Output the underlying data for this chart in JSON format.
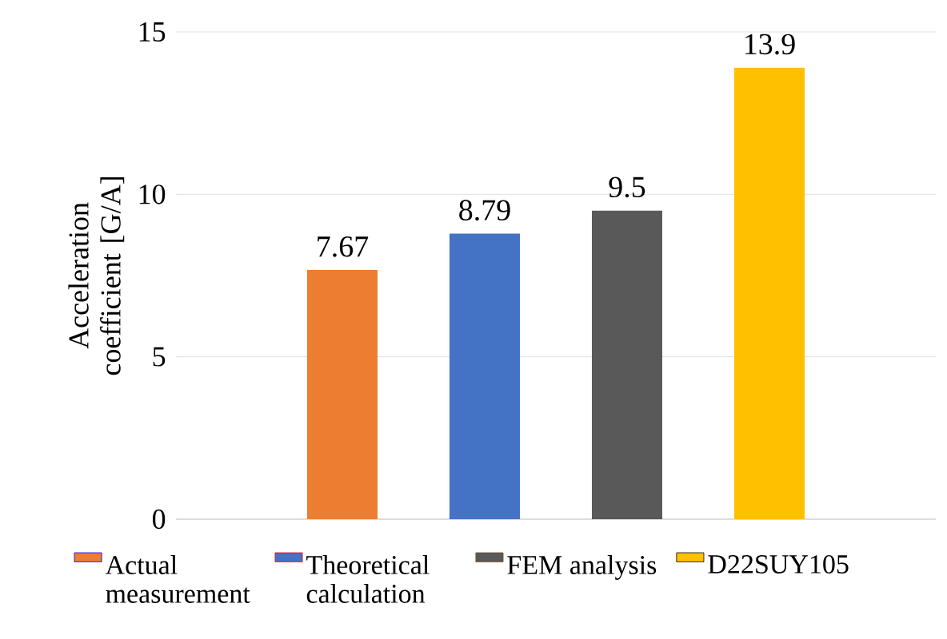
{
  "chart_data": {
    "type": "bar",
    "ylabel": "Acceleration coefficient [G/A]",
    "categories": [
      null
    ],
    "series": [
      {
        "name": "Actual measurement",
        "color": "#ed7d31",
        "values": [
          7.67
        ]
      },
      {
        "name": "Theoretical calculation",
        "color": "#4472c4",
        "values": [
          8.79
        ]
      },
      {
        "name": "FEM analysis",
        "color": "#595959",
        "values": [
          9.5
        ]
      },
      {
        "name": "D22SUY105",
        "color": "#ffc000",
        "values": [
          13.9
        ]
      }
    ],
    "ylim": [
      0,
      15
    ],
    "yticks": [
      0,
      5,
      10,
      15
    ],
    "grid": "y",
    "legend": "bottom",
    "data_labels": true
  }
}
